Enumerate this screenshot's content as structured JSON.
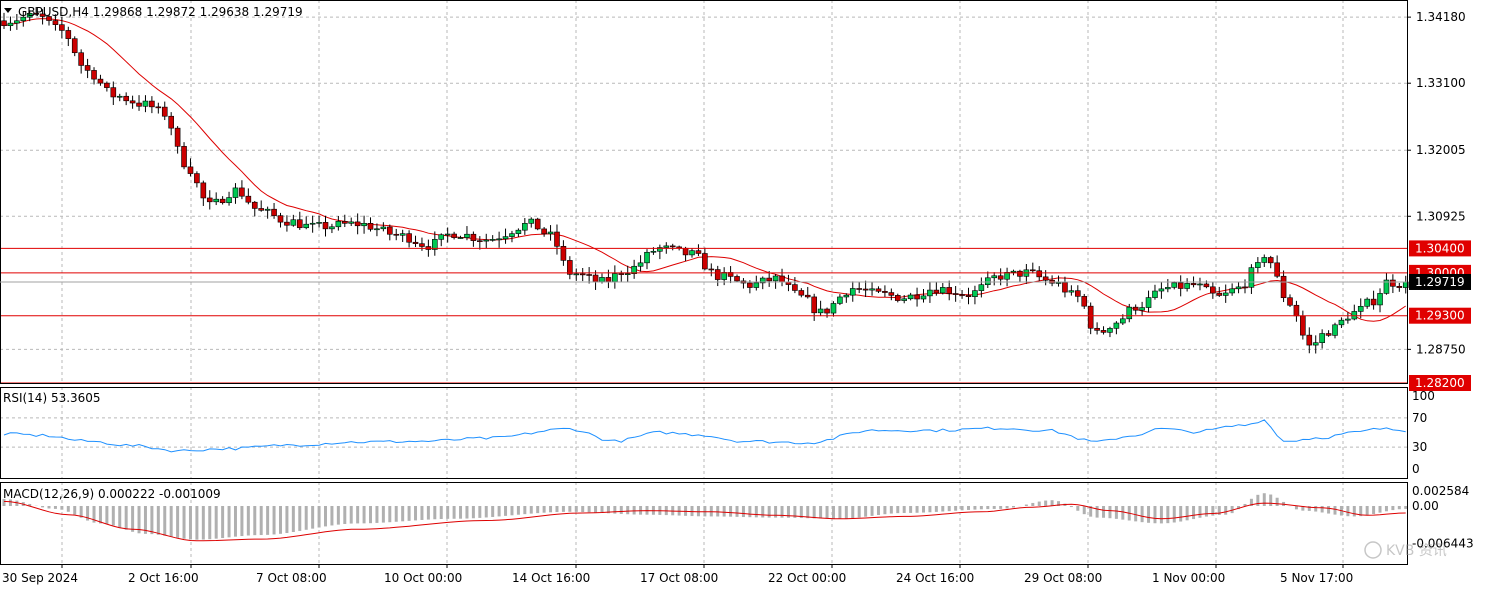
{
  "symbol_header": "GBPUSD,H4  1.29868 1.29872 1.29638 1.29719",
  "price_axis": {
    "ticks": [
      "1.34180",
      "1.33100",
      "1.32005",
      "1.30925",
      "1.28750"
    ],
    "tick_values": [
      1.3418,
      1.331,
      1.32005,
      1.30925,
      1.2875
    ],
    "current_price": "1.29719"
  },
  "levels": [
    {
      "label": "1.30400",
      "value": 1.304
    },
    {
      "label": "1.30000",
      "value": 1.3
    },
    {
      "label": "1.29300",
      "value": 1.293
    },
    {
      "label": "1.28200",
      "value": 1.282
    }
  ],
  "rsi": {
    "header": "RSI(14) 53.3605",
    "ticks": [
      "100",
      "70",
      "30",
      "0"
    ],
    "tick_values": [
      100,
      70,
      30,
      0
    ]
  },
  "macd": {
    "header": "MACD(12,26,9) 0.000222 -0.001009",
    "ticks": [
      "0.002584",
      "0.00",
      "-0.006443"
    ],
    "tick_values": [
      0.002584,
      0.0,
      -0.006443
    ]
  },
  "time_axis": [
    "30 Sep 2024",
    "2 Oct 16:00",
    "7 Oct 08:00",
    "10 Oct 00:00",
    "14 Oct 16:00",
    "17 Oct 08:00",
    "22 Oct 00:00",
    "24 Oct 16:00",
    "29 Oct 08:00",
    "1 Nov 00:00",
    "5 Nov 17:00"
  ],
  "watermark": "KVB 资讯",
  "colors": {
    "bull": "#00c853",
    "bear": "#cc0000",
    "ma": "#dd0000",
    "rsi": "#1e90ff",
    "macd_hist": "#b0b0b0",
    "macd_signal": "#dd0000",
    "level": "#e00000"
  },
  "chart_data": {
    "type": "candlestick",
    "symbol": "GBPUSD",
    "timeframe": "H4",
    "ylim": [
      1.282,
      1.3446
    ],
    "price_anchors": [
      [
        0,
        1.3412
      ],
      [
        5,
        1.342
      ],
      [
        9,
        1.3395
      ],
      [
        13,
        1.333
      ],
      [
        17,
        1.329
      ],
      [
        22,
        1.3275
      ],
      [
        25,
        1.326
      ],
      [
        28,
        1.318
      ],
      [
        32,
        1.311
      ],
      [
        36,
        1.3135
      ],
      [
        40,
        1.31
      ],
      [
        44,
        1.3085
      ],
      [
        48,
        1.3075
      ],
      [
        55,
        1.308
      ],
      [
        62,
        1.306
      ],
      [
        66,
        1.3045
      ],
      [
        70,
        1.3065
      ],
      [
        75,
        1.3055
      ],
      [
        82,
        1.308
      ],
      [
        85,
        1.306
      ],
      [
        88,
        1.3
      ],
      [
        93,
        1.2985
      ],
      [
        97,
        1.3005
      ],
      [
        102,
        1.304
      ],
      [
        107,
        1.303
      ],
      [
        111,
        1.2995
      ],
      [
        116,
        1.298
      ],
      [
        120,
        1.299
      ],
      [
        124,
        1.296
      ],
      [
        127,
        1.2935
      ],
      [
        132,
        1.2975
      ],
      [
        136,
        1.2965
      ],
      [
        140,
        1.296
      ],
      [
        145,
        1.2975
      ],
      [
        150,
        1.2965
      ],
      [
        155,
        1.2995
      ],
      [
        159,
        1.3
      ],
      [
        163,
        1.2985
      ],
      [
        167,
        1.296
      ],
      [
        170,
        1.29
      ],
      [
        173,
        1.292
      ],
      [
        176,
        1.2945
      ],
      [
        181,
        1.2975
      ],
      [
        185,
        1.298
      ],
      [
        189,
        1.296
      ],
      [
        192,
        1.2975
      ],
      [
        195,
        1.301
      ],
      [
        196,
        1.303
      ],
      [
        200,
        1.295
      ],
      [
        203,
        1.288
      ],
      [
        206,
        1.2905
      ],
      [
        210,
        1.2935
      ],
      [
        213,
        1.2955
      ],
      [
        215,
        1.2985
      ],
      [
        219,
        1.298
      ]
    ],
    "rsi_anchors": [
      [
        0,
        48
      ],
      [
        6,
        46
      ],
      [
        13,
        38
      ],
      [
        20,
        32
      ],
      [
        27,
        25
      ],
      [
        35,
        28
      ],
      [
        45,
        33
      ],
      [
        55,
        37
      ],
      [
        65,
        38
      ],
      [
        75,
        42
      ],
      [
        88,
        55
      ],
      [
        95,
        38
      ],
      [
        102,
        50
      ],
      [
        108,
        47
      ],
      [
        115,
        38
      ],
      [
        125,
        36
      ],
      [
        135,
        53
      ],
      [
        145,
        53
      ],
      [
        155,
        56
      ],
      [
        162,
        53
      ],
      [
        170,
        37
      ],
      [
        175,
        45
      ],
      [
        180,
        55
      ],
      [
        185,
        51
      ],
      [
        193,
        60
      ],
      [
        196,
        67
      ],
      [
        199,
        38
      ],
      [
        205,
        43
      ],
      [
        210,
        50
      ],
      [
        214,
        55
      ],
      [
        218,
        53
      ]
    ],
    "macd_hist_anchors": [
      [
        0,
        0.0012
      ],
      [
        8,
        -0.0005
      ],
      [
        15,
        -0.003
      ],
      [
        22,
        -0.0048
      ],
      [
        30,
        -0.0058
      ],
      [
        40,
        -0.005
      ],
      [
        55,
        -0.003
      ],
      [
        70,
        -0.0022
      ],
      [
        88,
        -0.001
      ],
      [
        100,
        -0.0015
      ],
      [
        110,
        -0.0018
      ],
      [
        120,
        -0.002
      ],
      [
        130,
        -0.0022
      ],
      [
        140,
        -0.0012
      ],
      [
        155,
        -0.0005
      ],
      [
        163,
        0.001
      ],
      [
        170,
        -0.002
      ],
      [
        180,
        -0.003
      ],
      [
        190,
        -0.0015
      ],
      [
        196,
        0.0022
      ],
      [
        202,
        -0.0008
      ],
      [
        210,
        -0.0018
      ],
      [
        218,
        -0.0005
      ]
    ],
    "macd_signal_anchors": [
      [
        0,
        0.0008
      ],
      [
        10,
        -0.0015
      ],
      [
        20,
        -0.004
      ],
      [
        30,
        -0.006
      ],
      [
        40,
        -0.0057
      ],
      [
        55,
        -0.004
      ],
      [
        75,
        -0.0025
      ],
      [
        90,
        -0.0012
      ],
      [
        100,
        -0.0008
      ],
      [
        110,
        -0.001
      ],
      [
        120,
        -0.0016
      ],
      [
        130,
        -0.0022
      ],
      [
        140,
        -0.0018
      ],
      [
        152,
        -0.001
      ],
      [
        160,
        -0.0002
      ],
      [
        166,
        0.0003
      ],
      [
        172,
        -0.0008
      ],
      [
        180,
        -0.0022
      ],
      [
        188,
        -0.0013
      ],
      [
        196,
        0.0005
      ],
      [
        205,
        -0.0003
      ],
      [
        212,
        -0.0016
      ],
      [
        218,
        -0.0012
      ]
    ]
  }
}
